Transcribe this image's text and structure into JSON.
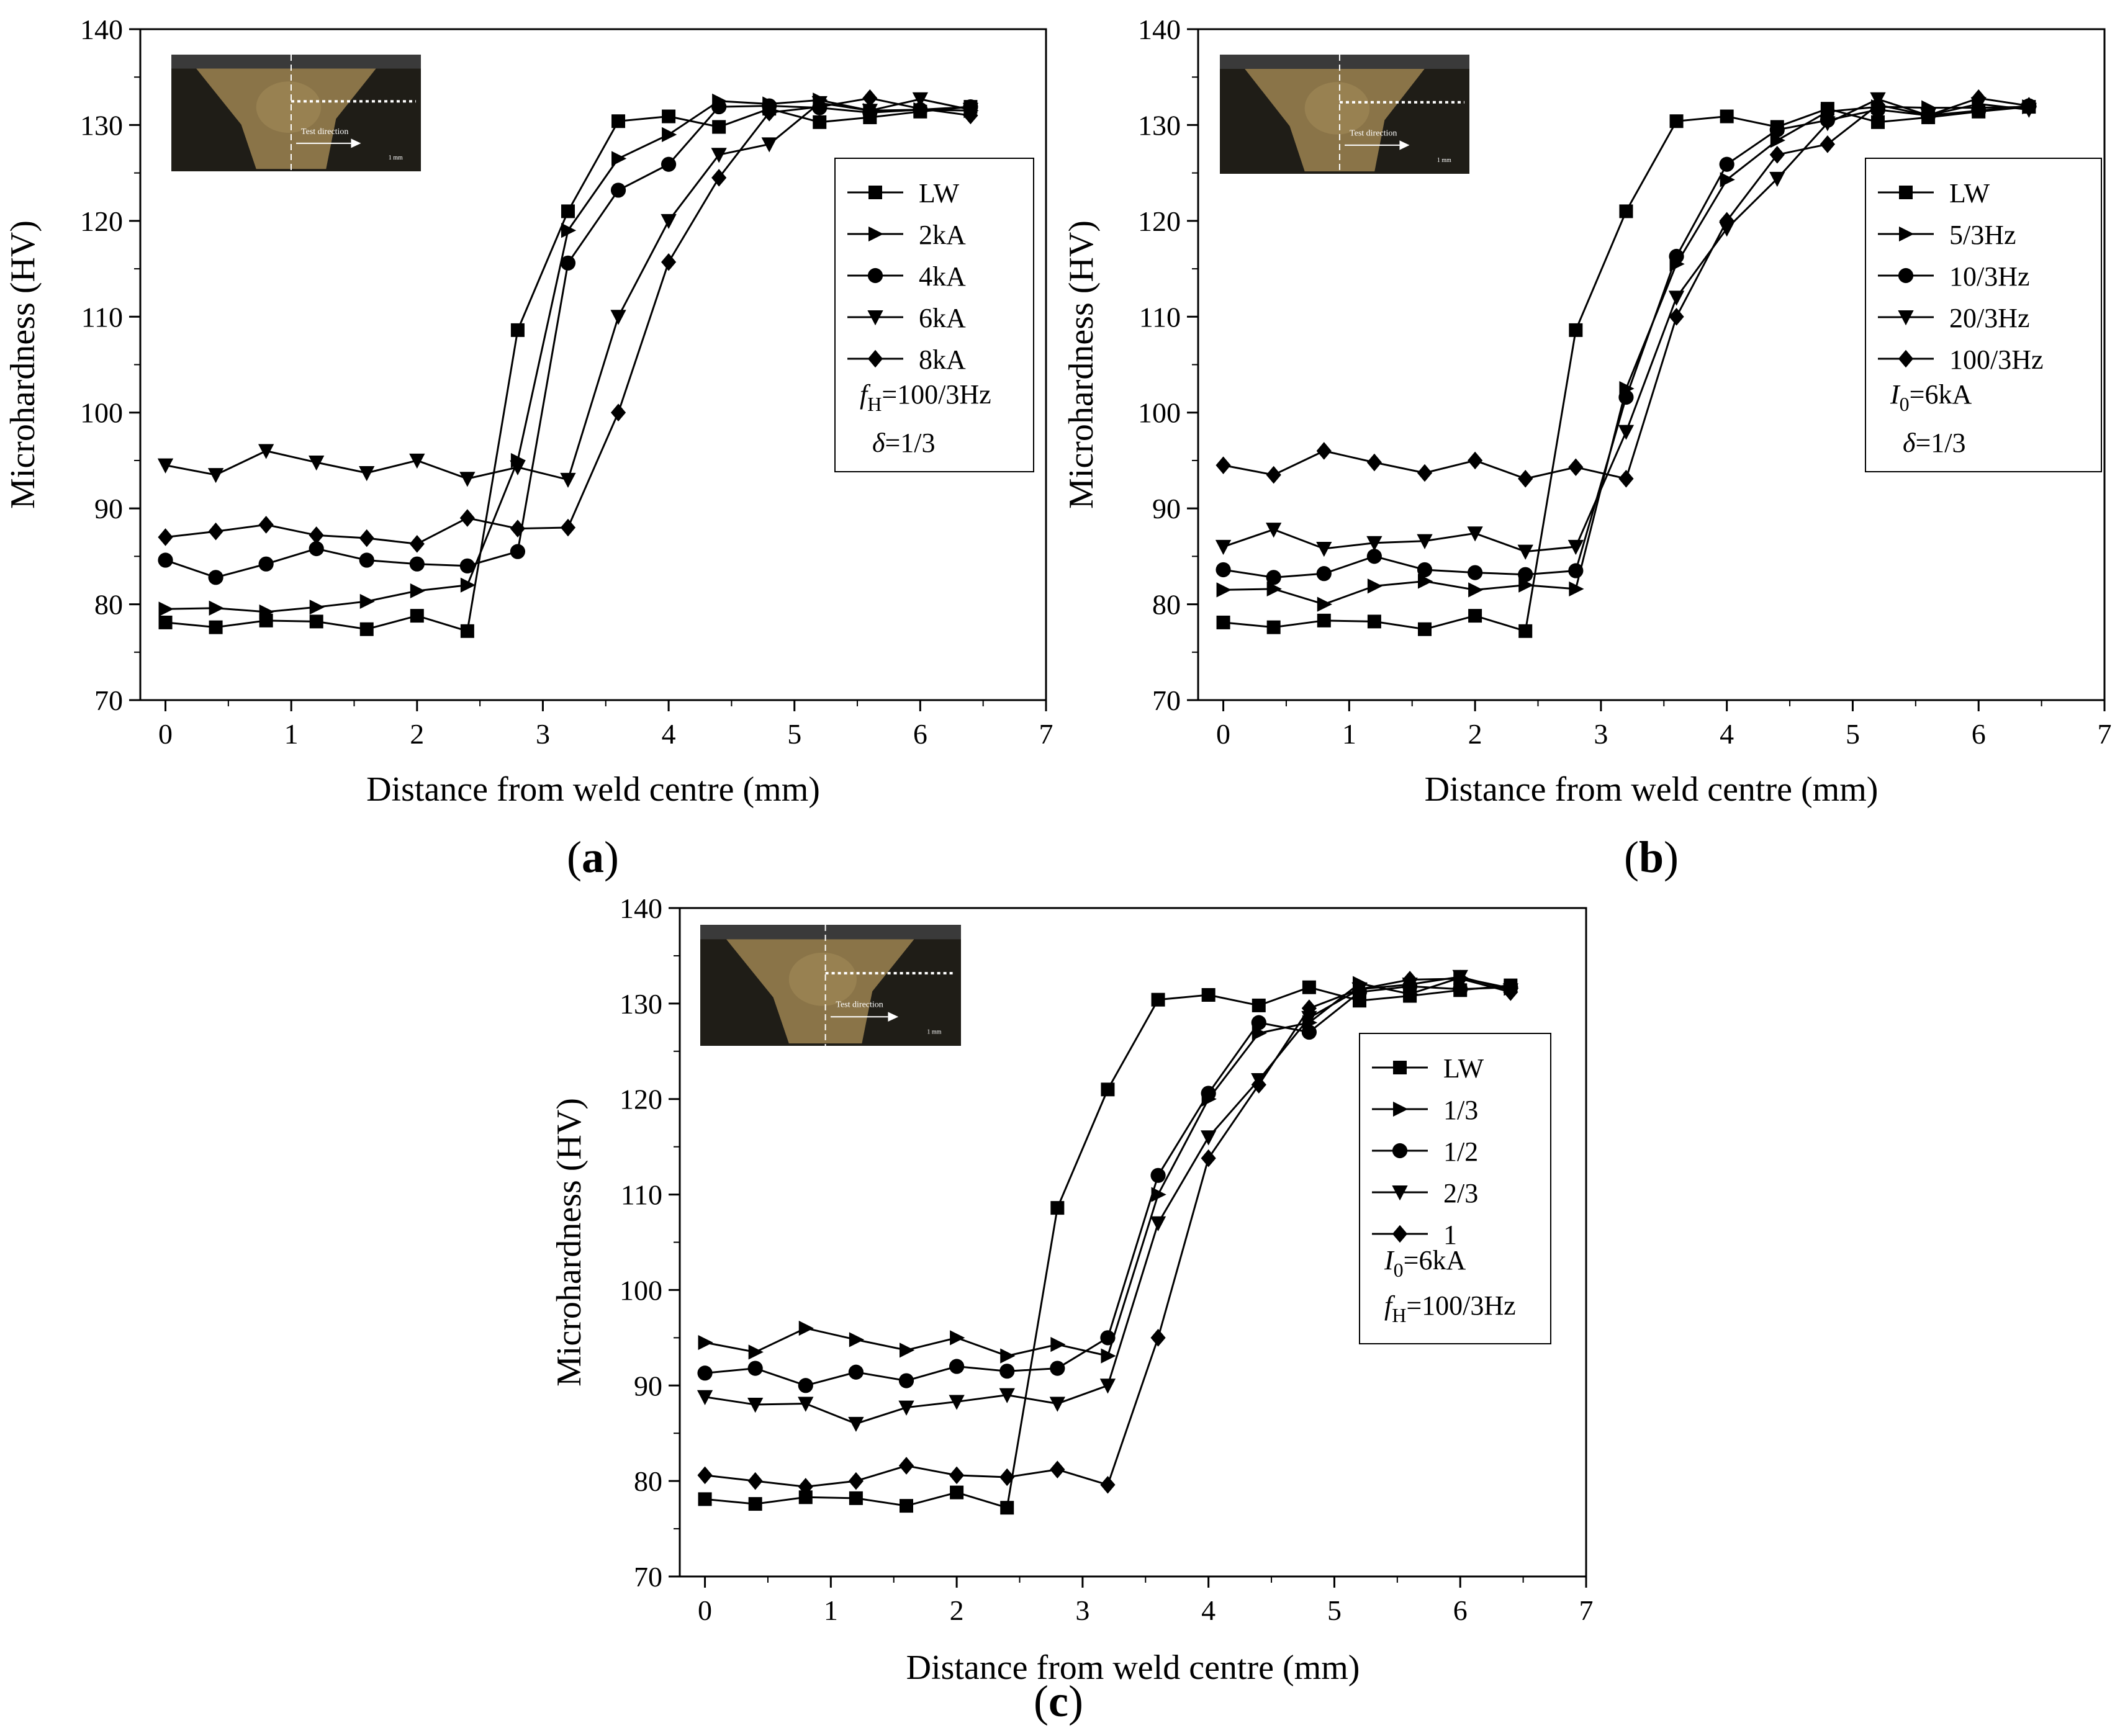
{
  "figure": {
    "marker_color": "#000000",
    "inset_colors": {
      "frame": "#2b2b2b",
      "weld": "#8a7448",
      "weld_light": "#a28a58",
      "base": "#1f1d17",
      "top": "#3a3a3a"
    }
  },
  "chart_data": [
    {
      "id": "a",
      "type": "line",
      "label": "(a)",
      "xlabel": "Distance from weld centre (mm)",
      "ylabel": "Microhardness (HV)",
      "xlim": [
        -0.2,
        7
      ],
      "ylim": [
        70,
        140
      ],
      "xticks": [
        0,
        1,
        2,
        3,
        4,
        5,
        6,
        7
      ],
      "yticks": [
        70,
        80,
        90,
        100,
        110,
        120,
        130,
        140
      ],
      "inset": {
        "caption": "Test direction",
        "scale": "1 mm"
      },
      "legend_position": "right",
      "legend_notes": [
        {
          "var": "f",
          "sub": "H",
          "rest": "=100/3Hz"
        },
        {
          "var": "δ",
          "sub": "",
          "rest": "=1/3"
        }
      ],
      "series": [
        {
          "name": "LW",
          "marker": "square",
          "x": [
            0,
            0.4,
            0.8,
            1.2,
            1.6,
            2.0,
            2.4,
            2.8,
            3.2,
            3.6,
            4.0,
            4.4,
            4.8,
            5.2,
            5.6,
            6.0,
            6.4
          ],
          "y": [
            78.1,
            77.6,
            78.3,
            78.2,
            77.4,
            78.8,
            77.2,
            108.6,
            121.0,
            130.4,
            130.9,
            129.8,
            131.7,
            130.3,
            130.8,
            131.4,
            131.9
          ]
        },
        {
          "name": "2kA",
          "marker": "triangle-right",
          "x": [
            0,
            0.4,
            0.8,
            1.2,
            1.6,
            2.0,
            2.4,
            2.8,
            3.2,
            3.6,
            4.0,
            4.4,
            4.8,
            5.2,
            5.6,
            6.0,
            6.4
          ],
          "y": [
            79.5,
            79.6,
            79.2,
            79.7,
            80.3,
            81.4,
            82.0,
            95.0,
            119.0,
            126.5,
            129.0,
            132.5,
            132.2,
            132.6,
            131.5,
            131.6,
            131.5
          ]
        },
        {
          "name": "4kA",
          "marker": "circle",
          "x": [
            0,
            0.4,
            0.8,
            1.2,
            1.6,
            2.0,
            2.4,
            2.8,
            3.2,
            3.6,
            4.0,
            4.4,
            4.8,
            5.2,
            5.6,
            6.0,
            6.4
          ],
          "y": [
            84.6,
            82.8,
            84.2,
            85.8,
            84.6,
            84.2,
            84.0,
            85.5,
            115.6,
            123.2,
            125.9,
            131.9,
            132.0,
            131.8,
            131.3,
            131.6,
            131.9
          ]
        },
        {
          "name": "6kA",
          "marker": "triangle-down",
          "x": [
            0,
            0.4,
            0.8,
            1.2,
            1.6,
            2.0,
            2.4,
            2.8,
            3.2,
            3.6,
            4.0,
            4.4,
            4.8,
            5.2,
            5.6,
            6.0,
            6.4
          ],
          "y": [
            94.5,
            93.5,
            96.0,
            94.8,
            93.7,
            95.0,
            93.1,
            94.3,
            93.0,
            110.0,
            120.0,
            126.9,
            128.0,
            132.3,
            131.5,
            132.7,
            131.6
          ]
        },
        {
          "name": "8kA",
          "marker": "diamond",
          "x": [
            0,
            0.4,
            0.8,
            1.2,
            1.6,
            2.0,
            2.4,
            2.8,
            3.2,
            3.6,
            4.0,
            4.4,
            4.8,
            5.2,
            5.6,
            6.0,
            6.4
          ],
          "y": [
            87.0,
            87.6,
            88.3,
            87.2,
            86.9,
            86.3,
            89.0,
            87.9,
            88.0,
            100.0,
            115.7,
            124.5,
            131.3,
            131.9,
            132.8,
            131.7,
            131.0
          ]
        }
      ]
    },
    {
      "id": "b",
      "type": "line",
      "label": "(b)",
      "xlabel": "Distance from weld centre (mm)",
      "ylabel": "Microhardness (HV)",
      "xlim": [
        -0.2,
        7
      ],
      "ylim": [
        70,
        140
      ],
      "xticks": [
        0,
        1,
        2,
        3,
        4,
        5,
        6,
        7
      ],
      "yticks": [
        70,
        80,
        90,
        100,
        110,
        120,
        130,
        140
      ],
      "inset": {
        "caption": "Test direction",
        "scale": "1 mm"
      },
      "legend_position": "right",
      "legend_notes": [
        {
          "var": "I",
          "sub": "0",
          "rest": "=6kA"
        },
        {
          "var": "δ",
          "sub": "",
          "rest": "=1/3"
        }
      ],
      "series": [
        {
          "name": "LW",
          "marker": "square",
          "x": [
            0,
            0.4,
            0.8,
            1.2,
            1.6,
            2.0,
            2.4,
            2.8,
            3.2,
            3.6,
            4.0,
            4.4,
            4.8,
            5.2,
            5.6,
            6.0,
            6.4
          ],
          "y": [
            78.1,
            77.6,
            78.3,
            78.2,
            77.4,
            78.8,
            77.2,
            108.6,
            121.0,
            130.4,
            130.9,
            129.8,
            131.7,
            130.3,
            130.8,
            131.4,
            131.9
          ]
        },
        {
          "name": "5/3Hz",
          "marker": "triangle-right",
          "x": [
            0,
            0.4,
            0.8,
            1.2,
            1.6,
            2.0,
            2.4,
            2.8,
            3.2,
            3.6,
            4.0,
            4.4,
            4.8,
            5.2,
            5.6,
            6.0,
            6.4
          ],
          "y": [
            81.5,
            81.6,
            80.0,
            81.9,
            82.4,
            81.5,
            82.0,
            81.6,
            102.5,
            115.5,
            124.3,
            128.4,
            131.4,
            131.9,
            131.8,
            131.8,
            131.9
          ]
        },
        {
          "name": "10/3Hz",
          "marker": "circle",
          "x": [
            0,
            0.4,
            0.8,
            1.2,
            1.6,
            2.0,
            2.4,
            2.8,
            3.2,
            3.6,
            4.0,
            4.4,
            4.8,
            5.2,
            5.6,
            6.0,
            6.4
          ],
          "y": [
            83.6,
            82.8,
            83.2,
            85.0,
            83.6,
            83.3,
            83.1,
            83.5,
            101.6,
            116.3,
            125.9,
            129.5,
            130.5,
            131.6,
            131.0,
            131.5,
            132.0
          ]
        },
        {
          "name": "20/3Hz",
          "marker": "triangle-down",
          "x": [
            0,
            0.4,
            0.8,
            1.2,
            1.6,
            2.0,
            2.4,
            2.8,
            3.2,
            3.6,
            4.0,
            4.4,
            4.8,
            5.2,
            5.6,
            6.0,
            6.4
          ],
          "y": [
            86.0,
            87.8,
            85.8,
            86.4,
            86.6,
            87.4,
            85.5,
            86.0,
            98.0,
            112.0,
            119.2,
            124.4,
            130.2,
            132.7,
            131.0,
            132.2,
            131.6
          ]
        },
        {
          "name": "100/3Hz",
          "marker": "diamond",
          "x": [
            0,
            0.4,
            0.8,
            1.2,
            1.6,
            2.0,
            2.4,
            2.8,
            3.2,
            3.6,
            4.0,
            4.4,
            4.8,
            5.2,
            5.6,
            6.0,
            6.4
          ],
          "y": [
            94.5,
            93.5,
            96.0,
            94.8,
            93.7,
            95.0,
            93.1,
            94.3,
            93.1,
            110.0,
            120.0,
            126.9,
            128.0,
            132.1,
            131.0,
            132.8,
            132.0
          ]
        }
      ]
    },
    {
      "id": "c",
      "type": "line",
      "label": "(c)",
      "xlabel": "Distance from weld centre (mm)",
      "ylabel": "Microhardness (HV)",
      "xlim": [
        -0.2,
        7
      ],
      "ylim": [
        70,
        140
      ],
      "xticks": [
        0,
        1,
        2,
        3,
        4,
        5,
        6,
        7
      ],
      "yticks": [
        70,
        80,
        90,
        100,
        110,
        120,
        130,
        140
      ],
      "inset": {
        "caption": "Test direction",
        "scale": "1 mm"
      },
      "legend_position": "right",
      "legend_notes": [
        {
          "var": "I",
          "sub": "0",
          "rest": "=6kA"
        },
        {
          "var": "f",
          "sub": "H",
          "rest": "=100/3Hz"
        }
      ],
      "series": [
        {
          "name": "LW",
          "marker": "square",
          "x": [
            0,
            0.4,
            0.8,
            1.2,
            1.6,
            2.0,
            2.4,
            2.8,
            3.2,
            3.6,
            4.0,
            4.4,
            4.8,
            5.2,
            5.6,
            6.0,
            6.4
          ],
          "y": [
            78.1,
            77.6,
            78.3,
            78.2,
            77.4,
            78.8,
            77.2,
            108.6,
            121.0,
            130.4,
            130.9,
            129.8,
            131.7,
            130.3,
            130.8,
            131.4,
            131.9
          ]
        },
        {
          "name": "1/3",
          "marker": "triangle-right",
          "x": [
            0,
            0.4,
            0.8,
            1.2,
            1.6,
            2.0,
            2.4,
            2.8,
            3.2,
            3.6,
            4.0,
            4.4,
            4.8,
            5.2,
            5.6,
            6.0,
            6.4
          ],
          "y": [
            94.5,
            93.5,
            96.0,
            94.8,
            93.7,
            95.0,
            93.1,
            94.3,
            93.1,
            110.0,
            120.0,
            126.9,
            128.0,
            132.1,
            131.0,
            132.7,
            131.6
          ]
        },
        {
          "name": "1/2",
          "marker": "circle",
          "x": [
            0,
            0.4,
            0.8,
            1.2,
            1.6,
            2.0,
            2.4,
            2.8,
            3.2,
            3.6,
            4.0,
            4.4,
            4.8,
            5.2,
            5.6,
            6.0,
            6.4
          ],
          "y": [
            91.3,
            91.8,
            90.0,
            91.4,
            90.5,
            92.0,
            91.5,
            91.8,
            95.0,
            112.0,
            120.6,
            128.0,
            127.0,
            131.2,
            131.8,
            131.5,
            131.7
          ]
        },
        {
          "name": "2/3",
          "marker": "triangle-down",
          "x": [
            0,
            0.4,
            0.8,
            1.2,
            1.6,
            2.0,
            2.4,
            2.8,
            3.2,
            3.6,
            4.0,
            4.4,
            4.8,
            5.2,
            5.6,
            6.0,
            6.4
          ],
          "y": [
            88.8,
            88.0,
            88.1,
            86.0,
            87.7,
            88.3,
            89.0,
            88.1,
            90.0,
            107.0,
            116.0,
            122.0,
            128.5,
            131.5,
            132.0,
            132.8,
            131.4
          ]
        },
        {
          "name": "1",
          "marker": "diamond",
          "x": [
            0,
            0.4,
            0.8,
            1.2,
            1.6,
            2.0,
            2.4,
            2.8,
            3.2,
            3.6,
            4.0,
            4.4,
            4.8,
            5.2,
            5.6,
            6.0,
            6.4
          ],
          "y": [
            80.6,
            80.0,
            79.4,
            80.0,
            81.6,
            80.6,
            80.4,
            81.2,
            79.6,
            95.0,
            113.8,
            121.5,
            129.5,
            131.5,
            132.5,
            132.6,
            131.2
          ]
        }
      ]
    }
  ]
}
